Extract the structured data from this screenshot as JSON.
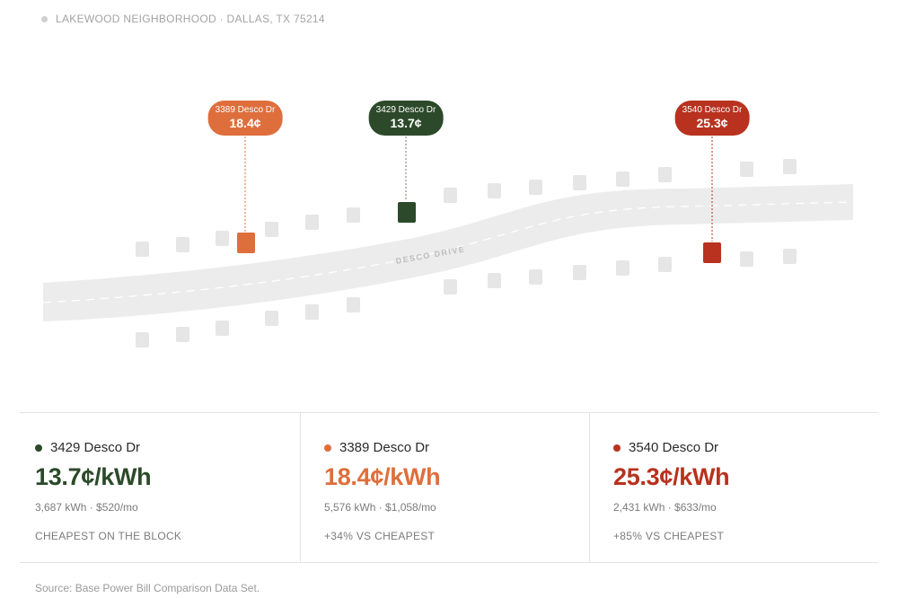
{
  "location": "LAKEWOOD NEIGHBORHOOD · DALLAS, TX 75214",
  "street_label": "DESCO DRIVE",
  "colors": {
    "green": "#2c4a2a",
    "orange": "#de6f3c",
    "red": "#b8321f",
    "road": "#ececec",
    "lot": "#e6e6e6"
  },
  "map_pins": [
    {
      "address": "3389 Desco Dr",
      "rate": "18.4¢",
      "color": "#de6f3c"
    },
    {
      "address": "3429 Desco Dr",
      "rate": "13.7¢",
      "color": "#2c4a2a"
    },
    {
      "address": "3540 Desco Dr",
      "rate": "25.3¢",
      "color": "#b8321f"
    }
  ],
  "cards": [
    {
      "address": "3429 Desco Dr",
      "price": "13.7¢/kWh",
      "usage": "3,687 kWh · $520/mo",
      "note": "CHEAPEST ON THE BLOCK",
      "color": "#2c4a2a"
    },
    {
      "address": "3389 Desco Dr",
      "price": "18.4¢/kWh",
      "usage": "5,576 kWh · $1,058/mo",
      "note": "+34% VS CHEAPEST",
      "color": "#de6f3c"
    },
    {
      "address": "3540 Desco Dr",
      "price": "25.3¢/kWh",
      "usage": "2,431 kWh · $633/mo",
      "note": "+85% VS CHEAPEST",
      "color": "#b8321f"
    }
  ],
  "source": "Source: Base Power Bill Comparison Data Set."
}
